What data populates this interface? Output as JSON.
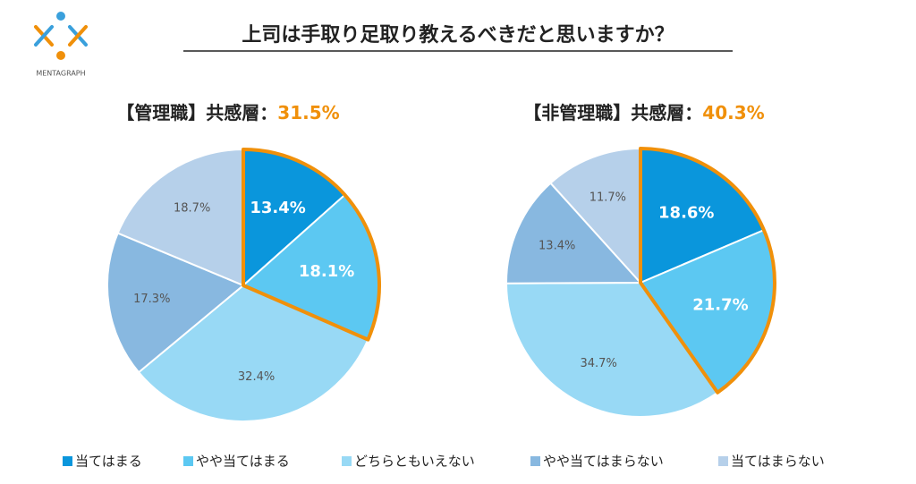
{
  "logo": "MENTAGRAPH",
  "title": "上司は手取り足取り教えるべきだと思いますか？",
  "chart_data": [
    {
      "type": "pie",
      "subtitle": "【管理職】共感層：",
      "highlight": {
        "value": 31.5,
        "label": "31.5%"
      },
      "highlight_color": "#f0900a",
      "highlighted": [
        0,
        1
      ],
      "categories": [
        "当てはまる",
        "やや当てはまる",
        "どちらともいえない",
        "やや当てはまらない",
        "当てはまらない"
      ],
      "values": [
        13.4,
        18.1,
        32.4,
        17.3,
        18.7
      ],
      "value_labels": [
        "13.4%",
        "18.1%",
        "32.4%",
        "17.3%",
        "18.7%"
      ],
      "colors": [
        "#0a96dc",
        "#5cc8f2",
        "#98d9f5",
        "#88b8e0",
        "#b6d0ea"
      ]
    },
    {
      "type": "pie",
      "subtitle": "【非管理職】共感層：",
      "highlight": {
        "value": 40.3,
        "label": "40.3%"
      },
      "highlight_color": "#f0900a",
      "highlighted": [
        0,
        1
      ],
      "categories": [
        "当てはまる",
        "やや当てはまる",
        "どちらともいえない",
        "やや当てはまらない",
        "当てはまらない"
      ],
      "values": [
        18.6,
        21.7,
        34.7,
        13.4,
        11.7
      ],
      "value_labels": [
        "18.6%",
        "21.7%",
        "34.7%",
        "13.4%",
        "11.7%"
      ],
      "colors": [
        "#0a96dc",
        "#5cc8f2",
        "#98d9f5",
        "#88b8e0",
        "#b6d0ea"
      ]
    }
  ]
}
